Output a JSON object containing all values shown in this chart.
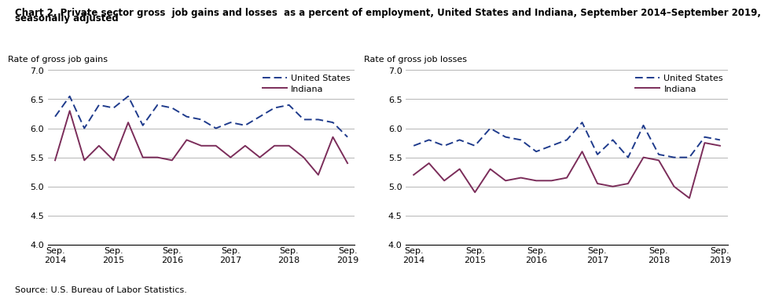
{
  "title_line1": "Chart 2. Private sector gross  job gains and losses  as a percent of employment, United States and Indiana, September 2014–September 2019,",
  "title_line2": "seasonally adjusted",
  "source": "Source: U.S. Bureau of Labor Statistics.",
  "left_ylabel": "Rate of gross job gains",
  "right_ylabel": "Rate of gross job losses",
  "ylim": [
    4.0,
    7.0
  ],
  "yticks": [
    4.0,
    4.5,
    5.0,
    5.5,
    6.0,
    6.5,
    7.0
  ],
  "xtick_labels": [
    "Sep.\n2014",
    "Sep.\n2015",
    "Sep.\n2016",
    "Sep.\n2017",
    "Sep.\n2018",
    "Sep.\n2019"
  ],
  "us_color": "#1F3B8C",
  "indiana_color": "#7B2D5A",
  "gains_us": [
    6.2,
    6.55,
    6.0,
    6.4,
    6.35,
    6.55,
    6.05,
    6.4,
    6.35,
    6.2,
    6.15,
    6.0,
    6.1,
    6.05,
    6.2,
    6.35,
    6.4,
    6.15,
    6.15,
    6.1,
    5.85
  ],
  "gains_indiana": [
    5.45,
    6.3,
    5.45,
    5.7,
    5.45,
    6.1,
    5.5,
    5.5,
    5.45,
    5.8,
    5.7,
    5.7,
    5.5,
    5.7,
    5.5,
    5.7,
    5.7,
    5.5,
    5.2,
    5.85,
    5.4
  ],
  "losses_us": [
    5.7,
    5.8,
    5.7,
    5.8,
    5.7,
    6.0,
    5.85,
    5.8,
    5.6,
    5.7,
    5.8,
    6.1,
    5.55,
    5.8,
    5.5,
    6.05,
    5.55,
    5.5,
    5.5,
    5.85,
    5.8
  ],
  "losses_indiana": [
    5.2,
    5.4,
    5.1,
    5.3,
    4.9,
    5.3,
    5.1,
    5.15,
    5.1,
    5.1,
    5.15,
    5.6,
    5.05,
    5.0,
    5.05,
    5.5,
    5.45,
    5.0,
    4.8,
    5.75,
    5.7
  ],
  "sep_positions": [
    0,
    4,
    8,
    12,
    16,
    20
  ]
}
